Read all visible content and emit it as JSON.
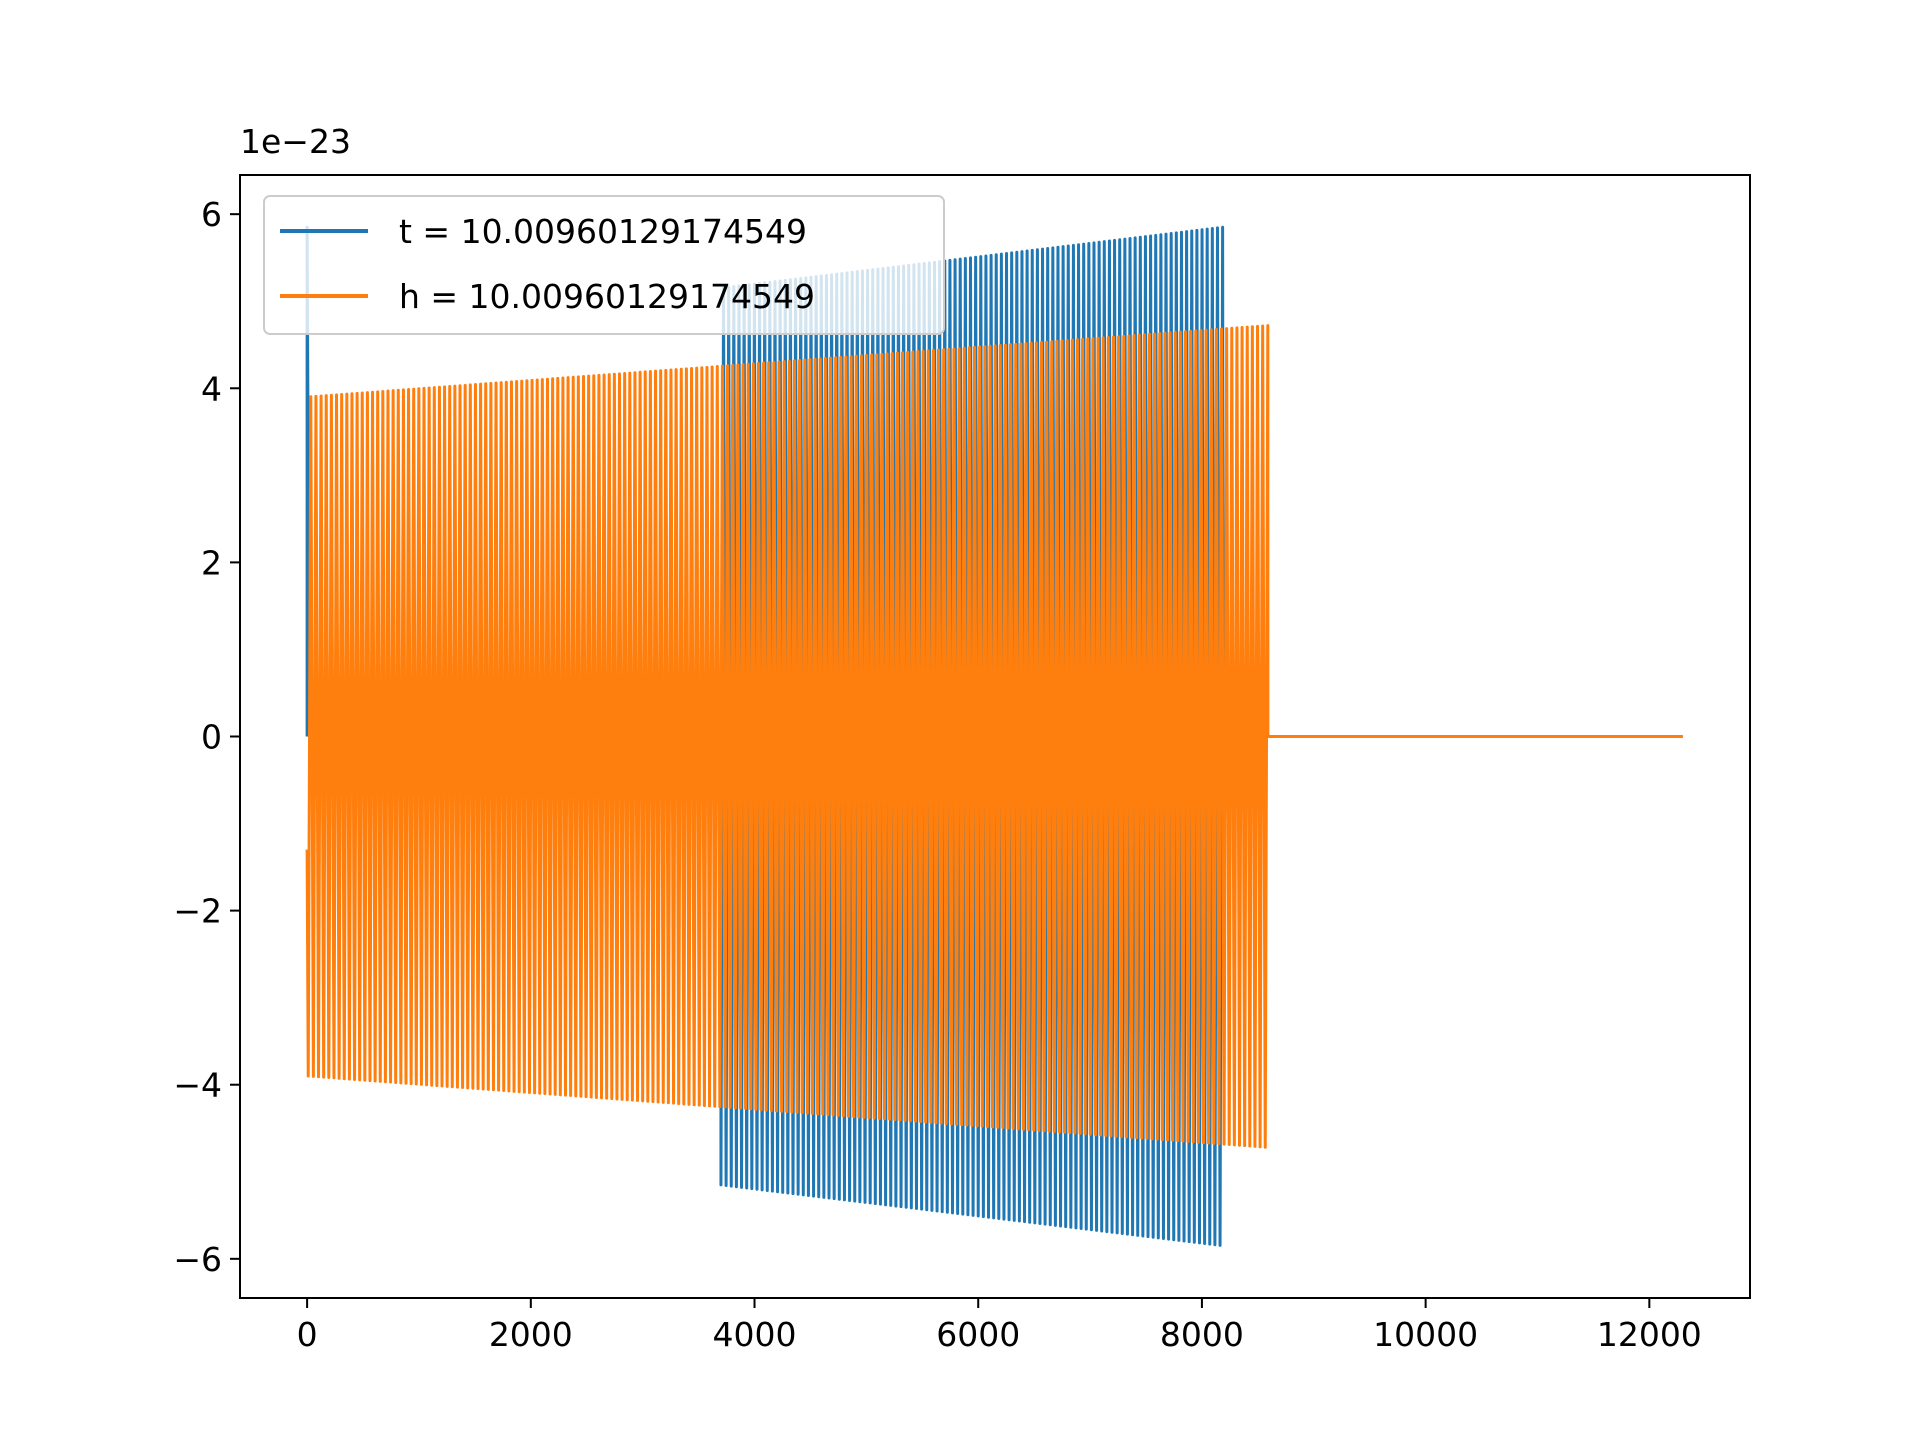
{
  "chart_data": {
    "type": "line",
    "title": "",
    "xlabel": "",
    "ylabel": "",
    "y_offset_label": "1e−23",
    "xlim": [
      -600,
      12900
    ],
    "ylim": [
      -6.45,
      6.45
    ],
    "x_ticks": [
      0,
      2000,
      4000,
      6000,
      8000,
      10000,
      12000
    ],
    "x_tick_labels": [
      "0",
      "2000",
      "4000",
      "6000",
      "8000",
      "10000",
      "12000"
    ],
    "y_ticks": [
      -6,
      -4,
      -2,
      0,
      2,
      4,
      6
    ],
    "y_tick_labels": [
      "−6",
      "−4",
      "−2",
      "0",
      "2",
      "4",
      "6"
    ],
    "grid": false,
    "legend_position": "top-left",
    "series": [
      {
        "name": "t = 10.00960129174549",
        "color": "#1f77b4",
        "description_points": {
          "spike": {
            "x": 0,
            "y": 5.85
          },
          "flat_zero": {
            "x_start": 0,
            "x_end": 3700,
            "y": 0
          },
          "oscillation": {
            "x_start": 3700,
            "x_end": 8190,
            "envelope_start": 5.15,
            "envelope_end": 5.85
          }
        }
      },
      {
        "name": "h = 10.00960129174549",
        "color": "#ff7f0e",
        "description_points": {
          "start": {
            "x": 0,
            "y": -1.3
          },
          "oscillation": {
            "x_start": 0,
            "x_end": 8590,
            "envelope_start": 3.9,
            "envelope_end": 4.72
          },
          "flat_zero": {
            "x_start": 8590,
            "x_end": 12300,
            "y": 0
          }
        }
      }
    ]
  }
}
